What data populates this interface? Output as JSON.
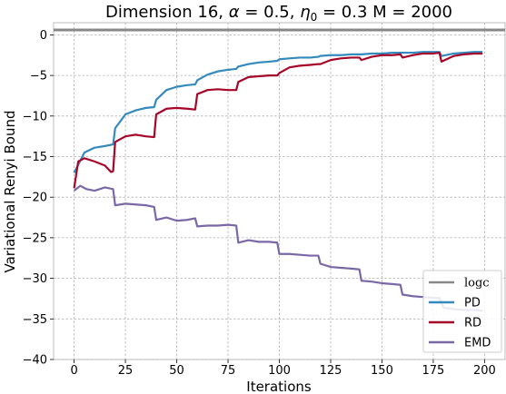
{
  "chart_data": {
    "type": "line",
    "title": "Dimension 16, α = 0.5, η₀ = 0.3 M = 2000",
    "title_parts": {
      "prefix": "Dimension 16, ",
      "alpha_symbol": "α",
      "alpha_value": " = 0.5, ",
      "eta_symbol": "η",
      "eta_subscript": "0",
      "suffix": " = 0.3 M = 2000"
    },
    "xlabel": "Iterations",
    "ylabel": "Variational Renyi Bound",
    "xlim": [
      -10,
      210
    ],
    "ylim": [
      -40,
      1.5
    ],
    "xticks": [
      0,
      25,
      50,
      75,
      100,
      125,
      150,
      175,
      200
    ],
    "yticks": [
      0,
      -5,
      -10,
      -15,
      -20,
      -25,
      -30,
      -35,
      -40
    ],
    "xtick_labels": [
      "0",
      "25",
      "50",
      "75",
      "100",
      "125",
      "150",
      "175",
      "200"
    ],
    "ytick_labels": [
      "0",
      "−5",
      "−10",
      "−15",
      "−20",
      "−25",
      "−30",
      "−35",
      "−40"
    ],
    "grid": true,
    "legend_position": "bottom-right",
    "reference_line": {
      "name": "log c",
      "label_display": "logc",
      "y": 0.6,
      "color": "#888888"
    },
    "series": [
      {
        "name": "PD",
        "color": "#348ABD",
        "x": [
          0,
          5,
          10,
          15,
          19,
          20,
          25,
          30,
          35,
          39,
          40,
          45,
          50,
          55,
          59,
          60,
          65,
          70,
          75,
          79,
          80,
          85,
          90,
          95,
          99,
          100,
          105,
          110,
          115,
          119,
          120,
          125,
          130,
          135,
          139,
          140,
          145,
          150,
          155,
          159,
          160,
          165,
          170,
          175,
          178,
          179,
          185,
          190,
          195,
          199
        ],
        "y": [
          -17.0,
          -14.5,
          -13.9,
          -13.7,
          -13.5,
          -11.5,
          -9.8,
          -9.3,
          -9.0,
          -8.9,
          -8.0,
          -6.8,
          -6.4,
          -6.2,
          -6.1,
          -5.6,
          -4.9,
          -4.5,
          -4.3,
          -4.2,
          -3.9,
          -3.6,
          -3.4,
          -3.3,
          -3.2,
          -3.0,
          -2.9,
          -2.8,
          -2.8,
          -2.7,
          -2.6,
          -2.5,
          -2.5,
          -2.4,
          -2.4,
          -2.4,
          -2.3,
          -2.3,
          -2.2,
          -2.2,
          -2.2,
          -2.2,
          -2.1,
          -2.1,
          -2.1,
          -2.6,
          -2.3,
          -2.2,
          -2.1,
          -2.1
        ]
      },
      {
        "name": "RD",
        "color": "#A60628",
        "x": [
          0,
          2,
          5,
          10,
          15,
          18,
          19,
          20,
          25,
          30,
          35,
          39,
          40,
          45,
          50,
          55,
          59,
          60,
          65,
          70,
          75,
          79,
          80,
          85,
          90,
          95,
          99,
          100,
          105,
          110,
          115,
          119,
          120,
          125,
          130,
          135,
          139,
          140,
          145,
          150,
          155,
          159,
          160,
          165,
          170,
          175,
          178,
          179,
          185,
          190,
          195,
          199
        ],
        "y": [
          -18.9,
          -15.6,
          -15.2,
          -15.6,
          -16.1,
          -16.9,
          -16.8,
          -13.2,
          -12.5,
          -12.3,
          -12.5,
          -12.6,
          -9.8,
          -9.1,
          -9.0,
          -9.1,
          -9.2,
          -7.3,
          -6.8,
          -6.7,
          -6.8,
          -6.8,
          -5.8,
          -5.2,
          -5.1,
          -5.0,
          -5.0,
          -4.7,
          -4.0,
          -3.8,
          -3.7,
          -3.6,
          -3.6,
          -3.1,
          -2.9,
          -2.8,
          -2.8,
          -3.1,
          -2.7,
          -2.5,
          -2.5,
          -2.4,
          -2.8,
          -2.5,
          -2.3,
          -2.3,
          -2.2,
          -3.3,
          -2.6,
          -2.4,
          -2.3,
          -2.3
        ]
      },
      {
        "name": "EMD",
        "color": "#7A68A6",
        "x": [
          0,
          3,
          6,
          10,
          15,
          19,
          20,
          25,
          30,
          35,
          39,
          40,
          45,
          50,
          55,
          59,
          60,
          65,
          70,
          75,
          79,
          80,
          85,
          90,
          95,
          99,
          100,
          105,
          110,
          115,
          119,
          120,
          125,
          130,
          135,
          139,
          140,
          145,
          150,
          155,
          159,
          160,
          165,
          170,
          175,
          178,
          180,
          185,
          190,
          195,
          199
        ],
        "y": [
          -19.2,
          -18.6,
          -19.0,
          -19.2,
          -18.8,
          -19.0,
          -21.0,
          -20.8,
          -20.9,
          -21.0,
          -21.2,
          -22.8,
          -22.5,
          -22.9,
          -22.8,
          -22.6,
          -23.6,
          -23.5,
          -23.5,
          -23.4,
          -23.5,
          -25.6,
          -25.3,
          -25.5,
          -25.5,
          -25.6,
          -27.0,
          -27.0,
          -27.1,
          -27.2,
          -27.2,
          -28.2,
          -28.6,
          -28.7,
          -28.8,
          -28.9,
          -30.3,
          -30.4,
          -30.6,
          -30.7,
          -30.8,
          -32.0,
          -32.2,
          -32.3,
          -32.4,
          -32.4,
          -33.6,
          -33.8,
          -33.9,
          -33.9,
          -34.0
        ]
      }
    ]
  }
}
